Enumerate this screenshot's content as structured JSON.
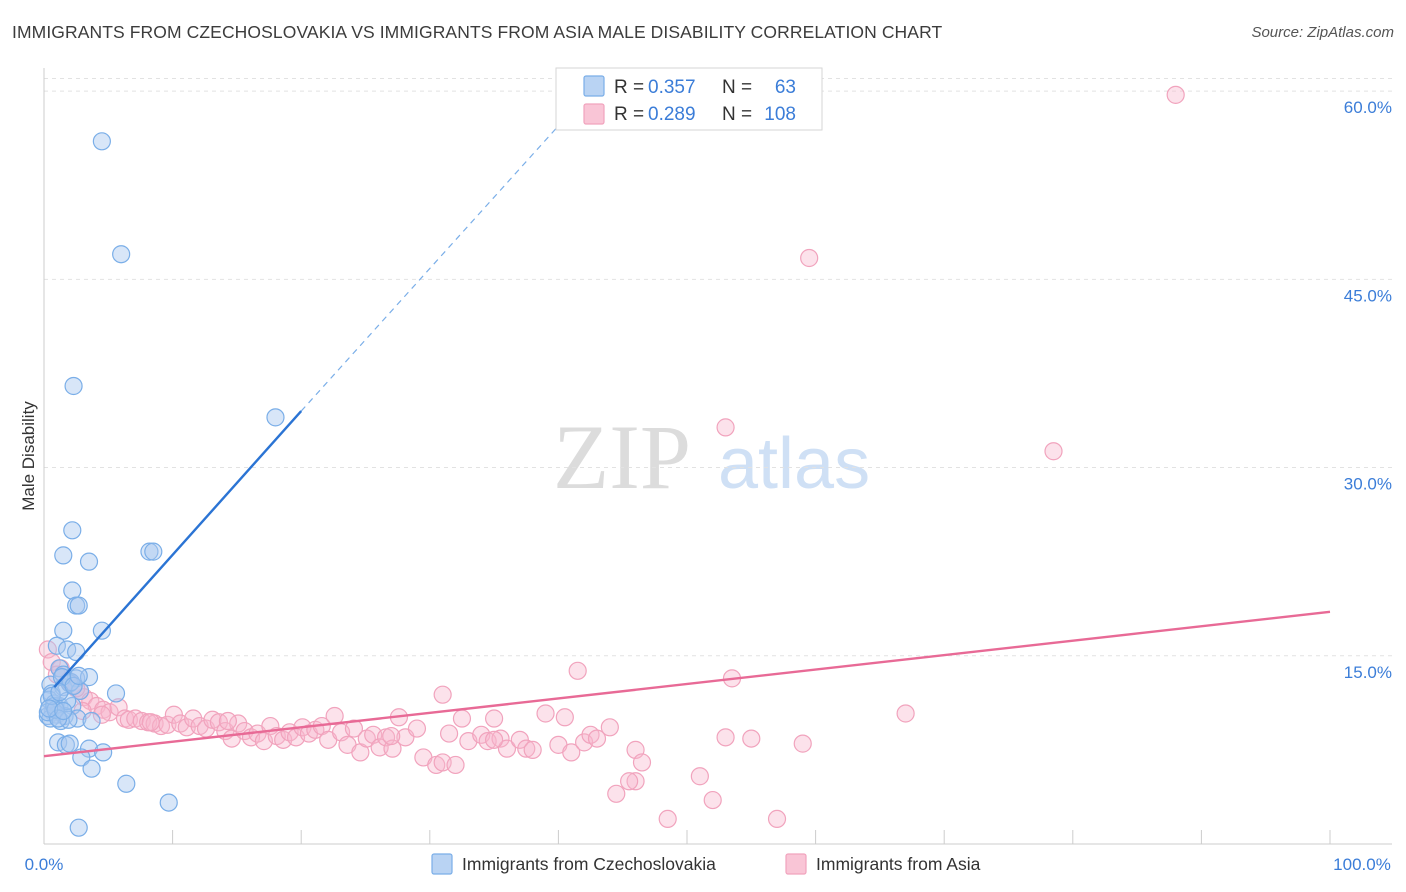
{
  "title": "IMMIGRANTS FROM CZECHOSLOVAKIA VS IMMIGRANTS FROM ASIA MALE DISABILITY CORRELATION CHART",
  "source": "Source: ZipAtlas.com",
  "watermark": {
    "zip": "ZIP",
    "atlas": "atlas"
  },
  "stats_box": {
    "rows": [
      {
        "r_label": "R = ",
        "r_value": "0.357",
        "n_label": "N = ",
        "n_value": "63",
        "color": "#a8c8f0"
      },
      {
        "r_label": "R = ",
        "r_value": "0.289",
        "n_label": "N = ",
        "n_value": "108",
        "color": "#f7b7cc"
      }
    ]
  },
  "chart_data": {
    "type": "scatter",
    "title": "IMMIGRANTS FROM CZECHOSLOVAKIA VS IMMIGRANTS FROM ASIA MALE DISABILITY CORRELATION CHART",
    "xlabel": "",
    "ylabel": "Male Disability",
    "xlim": [
      0,
      100
    ],
    "ylim": [
      0,
      62
    ],
    "y_ticks": [
      15,
      30,
      45,
      60
    ],
    "y_tick_labels": [
      "15.0%",
      "30.0%",
      "45.0%",
      "60.0%"
    ],
    "x_tick_labels": [
      "0.0%",
      "100.0%"
    ],
    "grid": true,
    "legend_position": "bottom",
    "series": [
      {
        "name": "Immigrants from Czechoslovakia",
        "color": "#7aaee8",
        "trend_color": "#2b74d4",
        "trend": {
          "x0": 0.8,
          "y0": 12.5,
          "x1": 20,
          "y1": 34.5,
          "dash_to_x": 42,
          "dash_to_y": 59.5
        },
        "points": [
          [
            4.5,
            56
          ],
          [
            6,
            47
          ],
          [
            2.3,
            36.5
          ],
          [
            18,
            34
          ],
          [
            2.2,
            25
          ],
          [
            1.5,
            23
          ],
          [
            3.5,
            22.5
          ],
          [
            8.2,
            23.3
          ],
          [
            8.5,
            23.3
          ],
          [
            2.2,
            20.2
          ],
          [
            2.5,
            19
          ],
          [
            2.7,
            19
          ],
          [
            1.5,
            17
          ],
          [
            4.5,
            17
          ],
          [
            1,
            15.8
          ],
          [
            1.8,
            15.5
          ],
          [
            2.5,
            15.3
          ],
          [
            1.2,
            14
          ],
          [
            1.5,
            13.5
          ],
          [
            2.5,
            13.2
          ],
          [
            3.5,
            13.3
          ],
          [
            0.5,
            12.7
          ],
          [
            0.6,
            12
          ],
          [
            1.5,
            12.5
          ],
          [
            2,
            12.8
          ],
          [
            2.8,
            12.2
          ],
          [
            5.6,
            12
          ],
          [
            0.4,
            11.5
          ],
          [
            0.8,
            11.2
          ],
          [
            1.2,
            11
          ],
          [
            2.2,
            11
          ],
          [
            0.7,
            10.5
          ],
          [
            0.3,
            10.2
          ],
          [
            1,
            10.3
          ],
          [
            1.6,
            10.2
          ],
          [
            2.6,
            10
          ],
          [
            0.5,
            10
          ],
          [
            1.3,
            9.8
          ],
          [
            0.3,
            10.5
          ],
          [
            0.8,
            11
          ],
          [
            1.8,
            11.4
          ],
          [
            0.9,
            10.7
          ],
          [
            1.9,
            9.9
          ],
          [
            3.7,
            9.8
          ],
          [
            2.1,
            12.9
          ],
          [
            1.4,
            13.3
          ],
          [
            1.1,
            8.1
          ],
          [
            1.7,
            7.9
          ],
          [
            2,
            8
          ],
          [
            3.5,
            7.6
          ],
          [
            4.6,
            7.3
          ],
          [
            2.9,
            6.9
          ],
          [
            3.7,
            6
          ],
          [
            6.4,
            4.8
          ],
          [
            9.7,
            3.3
          ],
          [
            2.7,
            1.3
          ],
          [
            1.1,
            10
          ],
          [
            0.6,
            11.8
          ],
          [
            1.2,
            12.1
          ],
          [
            2.3,
            12.6
          ],
          [
            0.4,
            10.8
          ],
          [
            1.5,
            10.6
          ],
          [
            2.7,
            13.4
          ]
        ]
      },
      {
        "name": "Immigrants from Asia",
        "color": "#f4a8c0",
        "trend_color": "#e86a96",
        "trend": {
          "x0": 0,
          "y0": 7,
          "x1": 100,
          "y1": 18.5
        },
        "points": [
          [
            88,
            59.7
          ],
          [
            59.5,
            46.7
          ],
          [
            53,
            33.2
          ],
          [
            78.5,
            31.3
          ],
          [
            0.3,
            15.5
          ],
          [
            0.6,
            14.5
          ],
          [
            1.3,
            14
          ],
          [
            1.9,
            13
          ],
          [
            2.8,
            12.2
          ],
          [
            3.1,
            11.7
          ],
          [
            3.6,
            11.4
          ],
          [
            4.1,
            11
          ],
          [
            4.6,
            10.7
          ],
          [
            5.1,
            10.5
          ],
          [
            5.8,
            10.9
          ],
          [
            6.3,
            10
          ],
          [
            6.6,
            9.9
          ],
          [
            7.1,
            10
          ],
          [
            7.6,
            9.8
          ],
          [
            8.1,
            9.7
          ],
          [
            8.6,
            9.6
          ],
          [
            9.1,
            9.4
          ],
          [
            9.6,
            9.5
          ],
          [
            10.1,
            10.3
          ],
          [
            10.6,
            9.6
          ],
          [
            11.1,
            9.3
          ],
          [
            11.6,
            10
          ],
          [
            12.1,
            9.4
          ],
          [
            12.6,
            9.2
          ],
          [
            13.1,
            9.9
          ],
          [
            13.6,
            9.7
          ],
          [
            14.1,
            9
          ],
          [
            14.6,
            8.4
          ],
          [
            15.1,
            9.6
          ],
          [
            15.6,
            9
          ],
          [
            16.1,
            8.5
          ],
          [
            16.6,
            8.8
          ],
          [
            17.1,
            8.2
          ],
          [
            17.6,
            9.4
          ],
          [
            18.1,
            8.6
          ],
          [
            18.6,
            8.3
          ],
          [
            19.1,
            8.9
          ],
          [
            19.6,
            8.5
          ],
          [
            20.1,
            9.3
          ],
          [
            20.6,
            8.8
          ],
          [
            21.1,
            9.1
          ],
          [
            21.6,
            9.4
          ],
          [
            22.1,
            8.3
          ],
          [
            22.6,
            10.2
          ],
          [
            23.1,
            8.9
          ],
          [
            23.6,
            7.9
          ],
          [
            24.1,
            9.2
          ],
          [
            24.6,
            7.3
          ],
          [
            25.1,
            8.4
          ],
          [
            25.6,
            8.7
          ],
          [
            26.1,
            7.7
          ],
          [
            26.6,
            8.5
          ],
          [
            27.1,
            7.6
          ],
          [
            27.6,
            10.1
          ],
          [
            28.1,
            8.5
          ],
          [
            29,
            9.2
          ],
          [
            29.5,
            6.9
          ],
          [
            30.5,
            6.3
          ],
          [
            31,
            6.5
          ],
          [
            31.5,
            8.8
          ],
          [
            32,
            6.3
          ],
          [
            32.5,
            10
          ],
          [
            33,
            8.2
          ],
          [
            34,
            8.7
          ],
          [
            34.5,
            8.2
          ],
          [
            35,
            10
          ],
          [
            35.5,
            8.4
          ],
          [
            36,
            7.6
          ],
          [
            37,
            8.3
          ],
          [
            37.5,
            7.6
          ],
          [
            38,
            7.5
          ],
          [
            39,
            10.4
          ],
          [
            40,
            7.9
          ],
          [
            40.5,
            10.1
          ],
          [
            41,
            7.3
          ],
          [
            42,
            8.1
          ],
          [
            42.5,
            8.7
          ],
          [
            43,
            8.4
          ],
          [
            44,
            9.3
          ],
          [
            41.5,
            13.8
          ],
          [
            31,
            11.9
          ],
          [
            46,
            7.5
          ],
          [
            46.5,
            6.5
          ],
          [
            44.5,
            4
          ],
          [
            46,
            5
          ],
          [
            45.5,
            5
          ],
          [
            51,
            5.4
          ],
          [
            52,
            3.5
          ],
          [
            48.5,
            2
          ],
          [
            57,
            2
          ],
          [
            53,
            8.5
          ],
          [
            53.5,
            13.2
          ],
          [
            55,
            8.4
          ],
          [
            59,
            8
          ],
          [
            67,
            10.4
          ],
          [
            1,
            13.5
          ],
          [
            2.5,
            12.4
          ],
          [
            3,
            10.6
          ],
          [
            4.5,
            10.3
          ],
          [
            8.3,
            9.7
          ],
          [
            14.3,
            9.8
          ],
          [
            27,
            8.6
          ],
          [
            35,
            8.3
          ]
        ]
      }
    ]
  }
}
